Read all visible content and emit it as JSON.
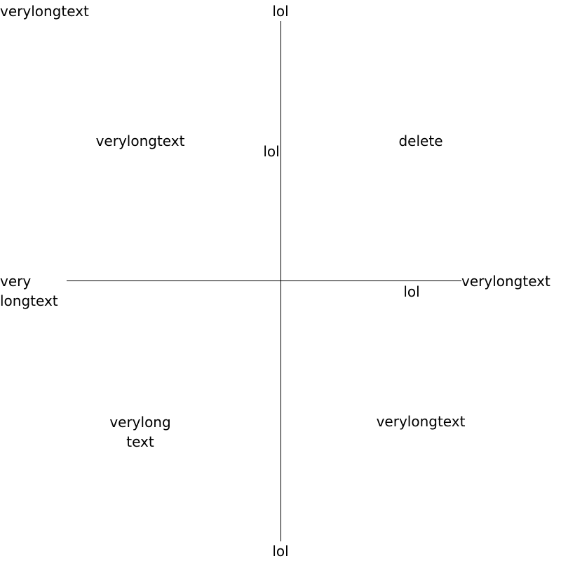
{
  "title": "verylongtext",
  "axes": {
    "y_top": "lol",
    "y_bottom": "lol",
    "x_left": [
      "very",
      "longtext"
    ],
    "x_right": "verylongtext"
  },
  "quadrants": {
    "top_left": "verylongtext",
    "top_right": "delete",
    "bottom_left": [
      "verylong",
      "text"
    ],
    "bottom_right": "verylongtext"
  },
  "points": [
    {
      "label": "lol"
    },
    {
      "label": "lol"
    }
  ]
}
